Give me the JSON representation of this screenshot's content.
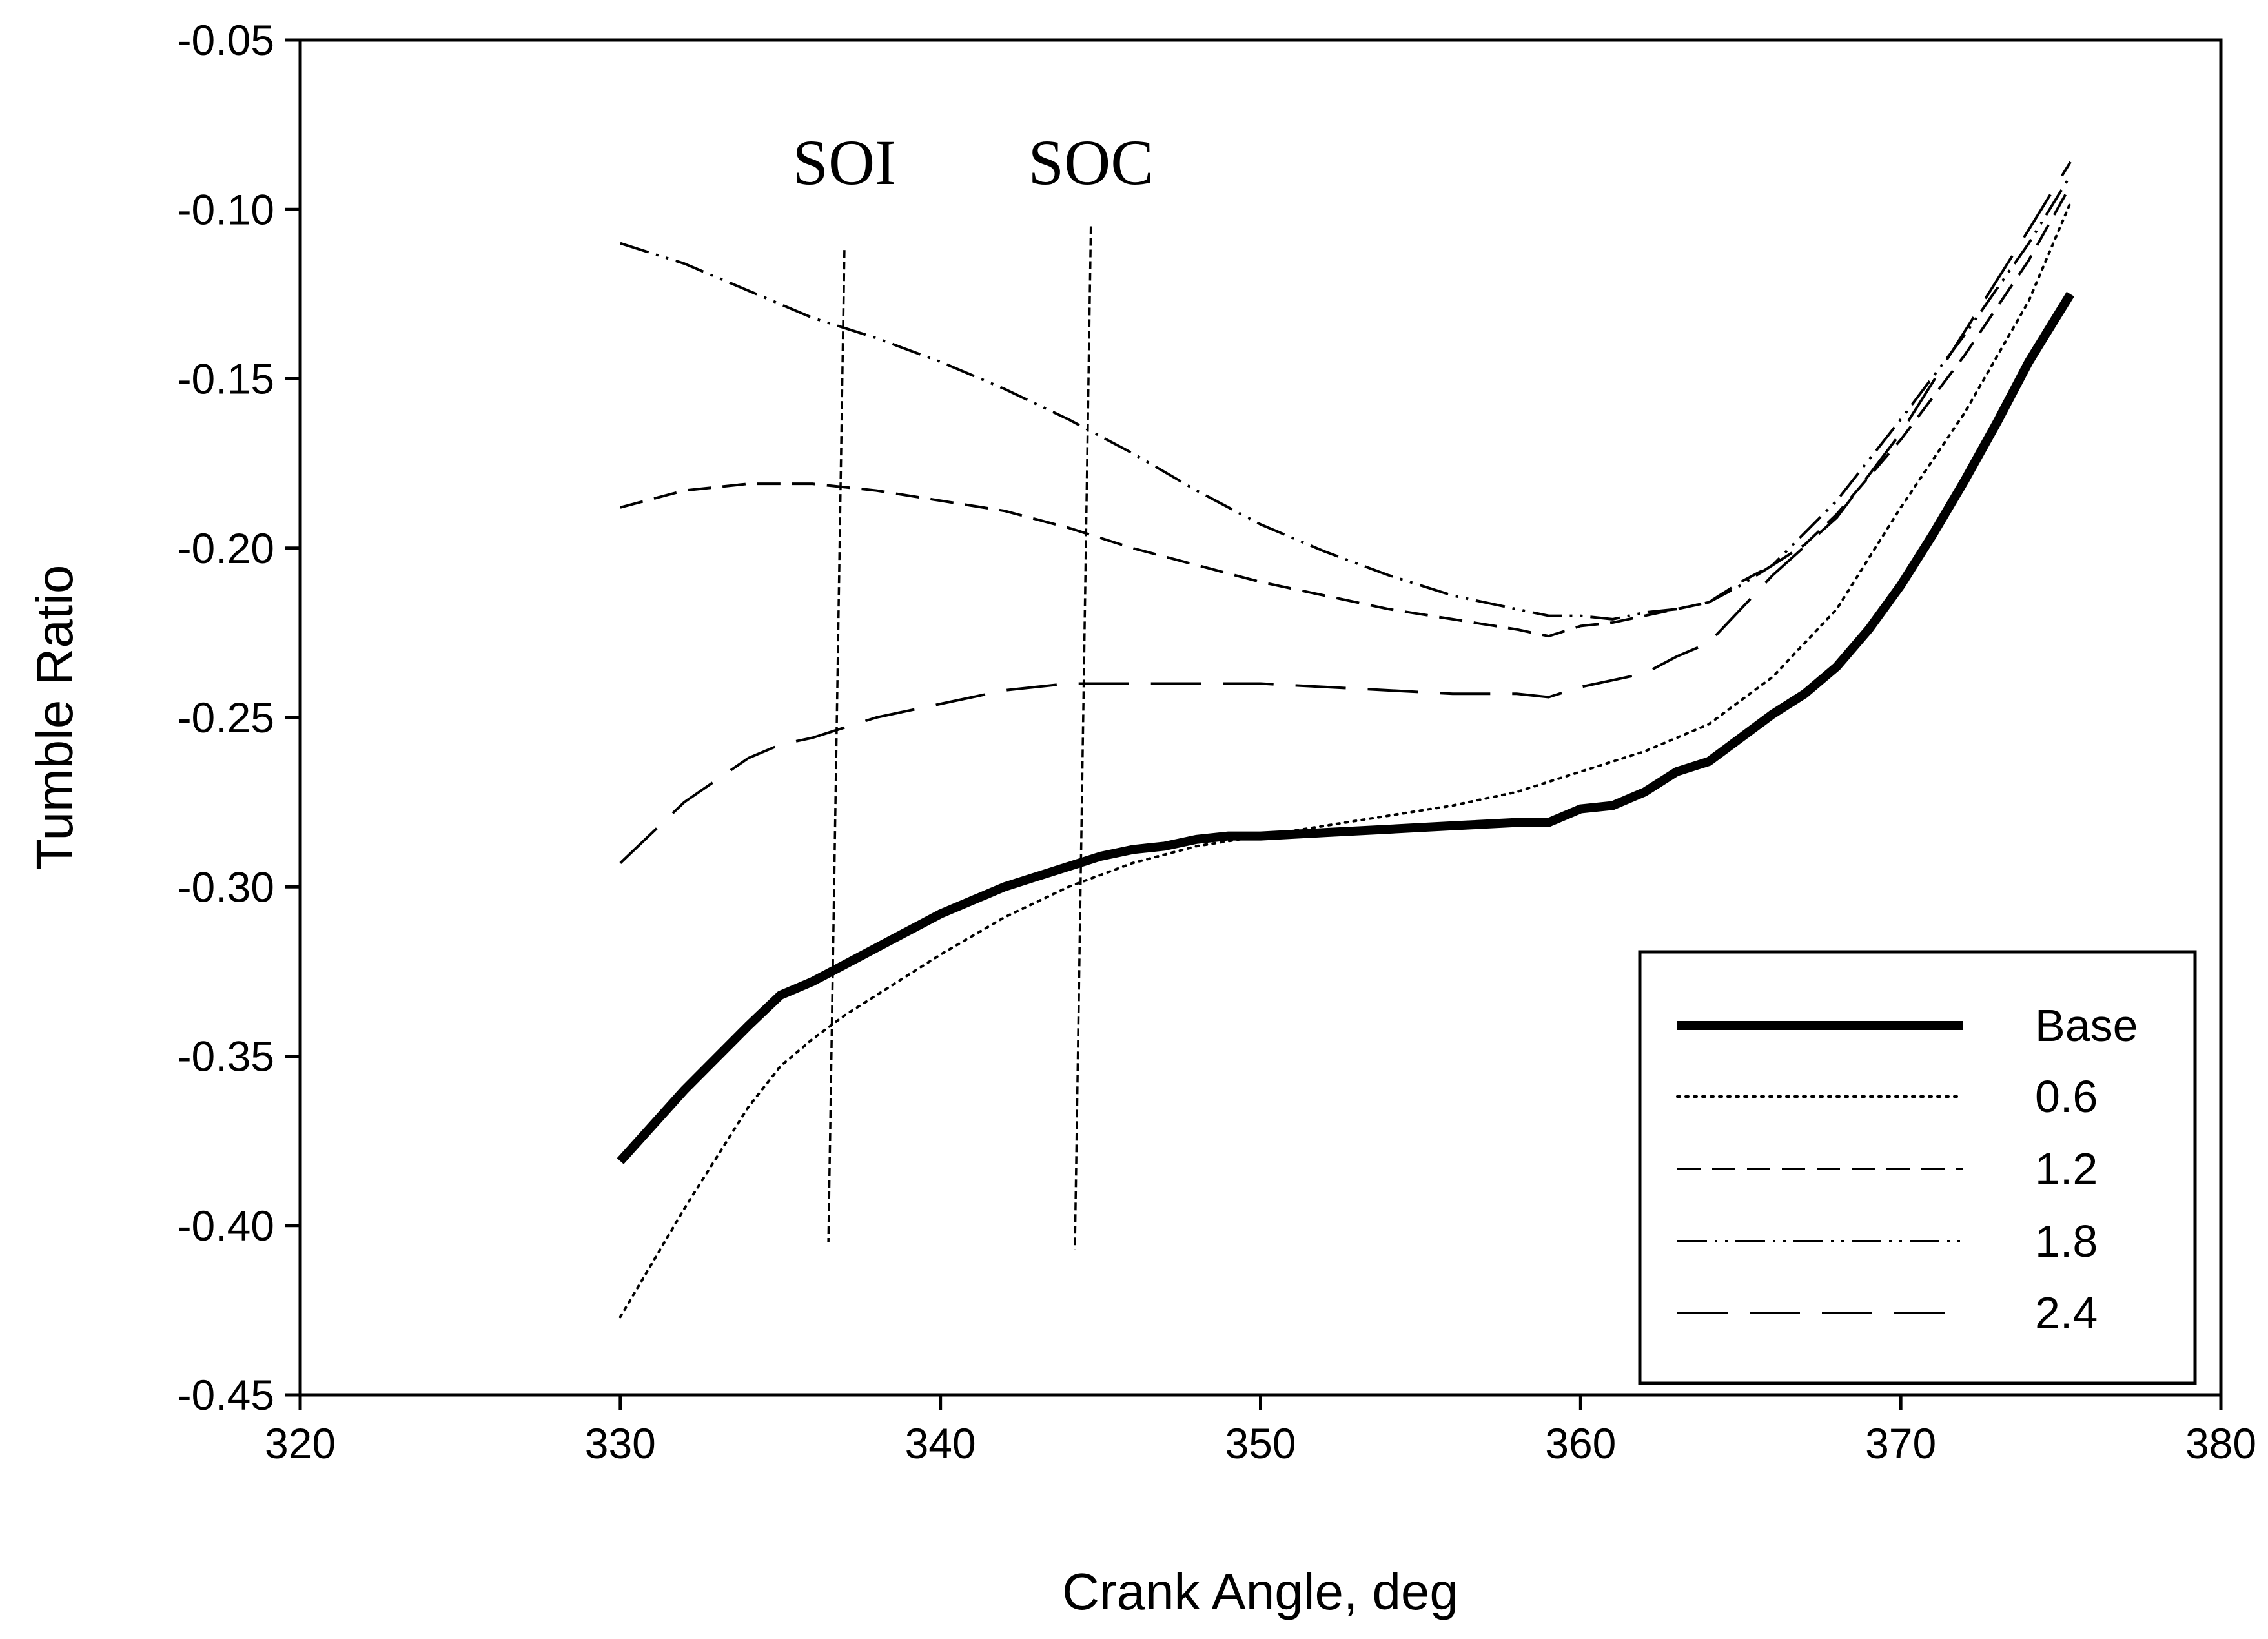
{
  "chart_data": {
    "type": "line",
    "title": "",
    "xlabel": "Crank Angle, deg",
    "ylabel": "Tumble Ratio",
    "xlim": [
      320,
      380
    ],
    "ylim": [
      -0.45,
      -0.05
    ],
    "xticks": [
      320,
      330,
      340,
      350,
      360,
      370,
      380
    ],
    "yticks": [
      -0.05,
      -0.1,
      -0.15,
      -0.2,
      -0.25,
      -0.3,
      -0.35,
      -0.4,
      -0.45
    ],
    "xtick_labels": [
      "320",
      "330",
      "340",
      "350",
      "360",
      "370",
      "380"
    ],
    "ytick_labels": [
      "-0.05",
      "-0.10",
      "-0.15",
      "-0.20",
      "-0.25",
      "-0.30",
      "-0.35",
      "-0.40",
      "-0.45"
    ],
    "grid": false,
    "legend_position": "bottom-right",
    "series": [
      {
        "name": "Base",
        "style": "solid-thick",
        "x": [
          330,
          332,
          334,
          335,
          336,
          337,
          338,
          339,
          340,
          341,
          342,
          343,
          344,
          345,
          346,
          347,
          348,
          349,
          350,
          352,
          354,
          356,
          358,
          359,
          360,
          361,
          362,
          363,
          364,
          365,
          366,
          367,
          368,
          369,
          370,
          371,
          372,
          373,
          374,
          375.3
        ],
        "values": [
          -0.381,
          -0.36,
          -0.341,
          -0.332,
          -0.328,
          -0.323,
          -0.318,
          -0.313,
          -0.308,
          -0.304,
          -0.3,
          -0.297,
          -0.294,
          -0.291,
          -0.289,
          -0.288,
          -0.286,
          -0.285,
          -0.285,
          -0.284,
          -0.283,
          -0.282,
          -0.281,
          -0.281,
          -0.277,
          -0.276,
          -0.272,
          -0.266,
          -0.263,
          -0.256,
          -0.249,
          -0.243,
          -0.235,
          -0.224,
          -0.211,
          -0.196,
          -0.18,
          -0.163,
          -0.145,
          -0.125
        ]
      },
      {
        "name": "0.6",
        "style": "dotted",
        "x": [
          330,
          332,
          334,
          335,
          336,
          337,
          338,
          340,
          342,
          344,
          346,
          348,
          350,
          352,
          354,
          356,
          358,
          360,
          362,
          364,
          366,
          368,
          370,
          372,
          374,
          375.3
        ],
        "values": [
          -0.427,
          -0.395,
          -0.365,
          -0.353,
          -0.345,
          -0.338,
          -0.332,
          -0.32,
          -0.309,
          -0.3,
          -0.293,
          -0.288,
          -0.285,
          -0.282,
          -0.279,
          -0.276,
          -0.272,
          -0.266,
          -0.26,
          -0.252,
          -0.238,
          -0.218,
          -0.188,
          -0.16,
          -0.127,
          -0.098
        ]
      },
      {
        "name": "1.2",
        "style": "dashed",
        "x": [
          330,
          332,
          334,
          336,
          338,
          340,
          342,
          344,
          346,
          348,
          350,
          352,
          354,
          356,
          358,
          359,
          360,
          361,
          362,
          363,
          364,
          365,
          366,
          367,
          368,
          370,
          372,
          374,
          375.3
        ],
        "values": [
          -0.188,
          -0.183,
          -0.181,
          -0.181,
          -0.183,
          -0.186,
          -0.189,
          -0.194,
          -0.2,
          -0.205,
          -0.21,
          -0.214,
          -0.218,
          -0.221,
          -0.224,
          -0.226,
          -0.223,
          -0.222,
          -0.22,
          -0.218,
          -0.216,
          -0.21,
          -0.205,
          -0.199,
          -0.19,
          -0.168,
          -0.143,
          -0.115,
          -0.093
        ]
      },
      {
        "name": "1.8",
        "style": "dash-dot-dot",
        "x": [
          330,
          332,
          334,
          336,
          337,
          338,
          340,
          342,
          344,
          346,
          348,
          350,
          352,
          354,
          356,
          357,
          358,
          359,
          360,
          361,
          362,
          363,
          364,
          365,
          366,
          368,
          370,
          372,
          374,
          375.3
        ],
        "values": [
          -0.11,
          -0.116,
          -0.124,
          -0.132,
          -0.135,
          -0.138,
          -0.145,
          -0.153,
          -0.162,
          -0.172,
          -0.183,
          -0.193,
          -0.201,
          -0.208,
          -0.214,
          -0.216,
          -0.218,
          -0.22,
          -0.22,
          -0.221,
          -0.219,
          -0.218,
          -0.216,
          -0.211,
          -0.205,
          -0.186,
          -0.162,
          -0.137,
          -0.11,
          -0.09
        ]
      },
      {
        "name": "2.4",
        "style": "long-dash",
        "x": [
          330,
          332,
          334,
          335,
          336,
          337,
          338,
          340,
          342,
          344,
          346,
          348,
          350,
          352,
          354,
          356,
          358,
          359,
          360,
          361,
          362,
          363,
          364,
          365,
          366,
          368,
          370,
          372,
          374,
          375.3
        ],
        "values": [
          -0.293,
          -0.275,
          -0.262,
          -0.258,
          -0.256,
          -0.253,
          -0.25,
          -0.246,
          -0.242,
          -0.24,
          -0.24,
          -0.24,
          -0.24,
          -0.241,
          -0.242,
          -0.243,
          -0.243,
          -0.244,
          -0.241,
          -0.239,
          -0.237,
          -0.232,
          -0.228,
          -0.218,
          -0.208,
          -0.191,
          -0.166,
          -0.136,
          -0.106,
          -0.086
        ]
      }
    ],
    "annotations": [
      {
        "text": "SOI",
        "x_top": 337,
        "y_top": -0.112,
        "x_bottom": 336.5,
        "y_bottom": -0.405
      },
      {
        "text": "SOC",
        "x_top": 344.7,
        "y_top": -0.105,
        "x_bottom": 344.2,
        "y_bottom": -0.407
      }
    ]
  }
}
